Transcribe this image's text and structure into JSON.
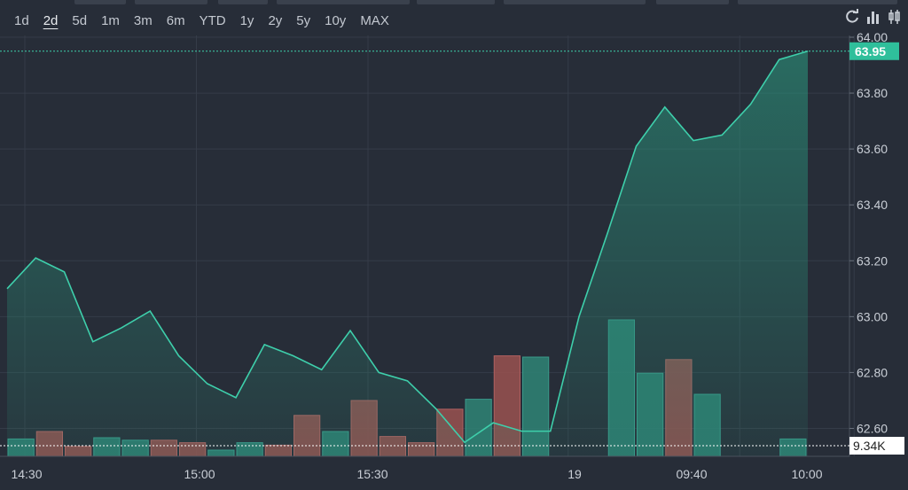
{
  "toolbar": {
    "ranges": [
      "1d",
      "2d",
      "5d",
      "1m",
      "3m",
      "6m",
      "YTD",
      "1y",
      "2y",
      "5y",
      "10y",
      "MAX"
    ],
    "active_range": "2d",
    "icons": [
      "refresh-icon",
      "bar-chart-icon",
      "candlestick-icon"
    ]
  },
  "chart_data": {
    "type": "area",
    "x": [
      "14:30",
      "14:35",
      "14:40",
      "14:45",
      "14:50",
      "14:55",
      "15:00",
      "15:05",
      "15:10",
      "15:15",
      "15:20",
      "15:25",
      "15:30",
      "15:35",
      "15:40",
      "15:45",
      "15:50",
      "15:55",
      "16:00",
      "19 09:10",
      "09:15",
      "09:20",
      "09:25",
      "09:30",
      "09:35",
      "09:40",
      "09:45",
      "09:50",
      "09:55",
      "10:00"
    ],
    "price": [
      63.1,
      63.21,
      63.16,
      62.91,
      62.96,
      63.02,
      62.86,
      62.76,
      62.71,
      62.9,
      62.86,
      62.81,
      62.95,
      62.8,
      62.77,
      62.67,
      62.55,
      62.62,
      62.59,
      62.59,
      63.0,
      63.3,
      63.61,
      63.75,
      63.63,
      63.65,
      63.76,
      63.92,
      63.95
    ],
    "volume": [
      {
        "x": "14:30",
        "up": true,
        "v": 0.14
      },
      {
        "x": "14:35",
        "up": false,
        "v": 0.2
      },
      {
        "x": "14:40",
        "up": false,
        "v": 0.08
      },
      {
        "x": "14:45",
        "up": true,
        "v": 0.15
      },
      {
        "x": "14:50",
        "up": true,
        "v": 0.13
      },
      {
        "x": "14:55",
        "up": false,
        "v": 0.13
      },
      {
        "x": "15:00",
        "up": false,
        "v": 0.11
      },
      {
        "x": "15:05",
        "up": true,
        "v": 0.05
      },
      {
        "x": "15:10",
        "up": true,
        "v": 0.11
      },
      {
        "x": "15:15",
        "up": false,
        "v": 0.09
      },
      {
        "x": "15:20",
        "up": false,
        "v": 0.33
      },
      {
        "x": "15:25",
        "up": true,
        "v": 0.2
      },
      {
        "x": "15:30",
        "up": false,
        "v": 0.45
      },
      {
        "x": "15:35",
        "up": false,
        "v": 0.16
      },
      {
        "x": "15:40",
        "up": false,
        "v": 0.11
      },
      {
        "x": "15:45",
        "up": false,
        "v": 0.38
      },
      {
        "x": "15:50",
        "up": true,
        "v": 0.46
      },
      {
        "x": "15:55",
        "up": false,
        "v": 0.81
      },
      {
        "x": "16:00",
        "up": true,
        "v": 0.8
      },
      {
        "x": "19 09:10",
        "up": true,
        "v": 0.0
      },
      {
        "x": "09:15",
        "up": true,
        "v": 0.0
      },
      {
        "x": "09:20",
        "up": true,
        "v": 1.1
      },
      {
        "x": "09:25",
        "up": true,
        "v": 0.67
      },
      {
        "x": "09:30",
        "up": false,
        "v": 0.78
      },
      {
        "x": "09:35",
        "up": true,
        "v": 0.5
      },
      {
        "x": "09:40",
        "up": true,
        "v": 0.0
      },
      {
        "x": "09:45",
        "up": true,
        "v": 0.0
      },
      {
        "x": "09:50",
        "up": true,
        "v": 0.14
      },
      {
        "x": "09:55",
        "up": true,
        "v": 0.0
      }
    ],
    "y_ticks": [
      "64.00",
      "63.80",
      "63.60",
      "63.40",
      "63.20",
      "63.00",
      "62.80",
      "62.60"
    ],
    "ylim": [
      62.5,
      64.0
    ],
    "x_tick_labels": [
      "14:30",
      "15:00",
      "15:30",
      "19",
      "09:40",
      "10:00"
    ],
    "last_price": "63.95",
    "last_volume": "9.34K",
    "colors": {
      "line": "#3ecfab",
      "up_bar": "#2f7f72",
      "down_bar": "#94504f",
      "price_badge": "#2fbf9b"
    }
  }
}
